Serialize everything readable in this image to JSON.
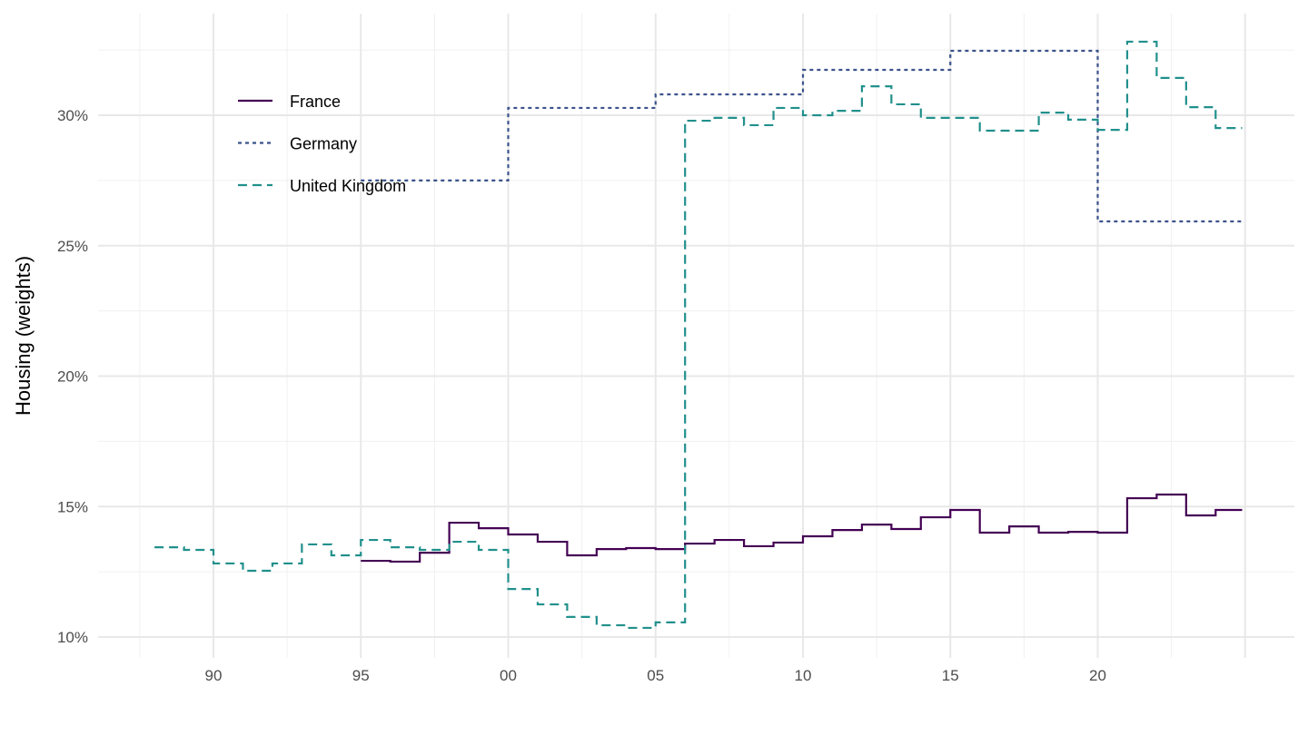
{
  "chart_data": {
    "type": "line",
    "title": "",
    "xlabel": "",
    "ylabel": "Housing (weights)",
    "xlim": [
      1987.5,
      2026.5
    ],
    "ylim": [
      9.5,
      33.2
    ],
    "grid": true,
    "legend_position": "top-left",
    "x_ticks": [
      1990,
      1995,
      2000,
      2005,
      2010,
      2015,
      2020
    ],
    "x_tick_labels": [
      "90",
      "95",
      "00",
      "05",
      "10",
      "15",
      "20"
    ],
    "y_ticks": [
      10,
      15,
      20,
      25,
      30
    ],
    "y_tick_labels": [
      "10%",
      "15%",
      "20%",
      "25%",
      "30%"
    ],
    "step": true,
    "series": [
      {
        "name": "France",
        "color": "#440154",
        "dash": "solid",
        "x": [
          1995,
          1996,
          1997,
          1998,
          1999,
          2000,
          2001,
          2002,
          2003,
          2004,
          2005,
          2006,
          2007,
          2008,
          2009,
          2010,
          2011,
          2012,
          2013,
          2014,
          2015,
          2016,
          2017,
          2018,
          2019,
          2020,
          2021,
          2022,
          2023,
          2024
        ],
        "values": [
          12.92,
          12.89,
          13.23,
          14.38,
          14.17,
          13.93,
          13.65,
          13.13,
          13.37,
          13.41,
          13.37,
          13.58,
          13.72,
          13.48,
          13.62,
          13.86,
          14.1,
          14.31,
          14.14,
          14.59,
          14.87,
          14.0,
          14.24,
          14.0,
          14.03,
          14.0,
          15.32,
          15.46,
          14.66,
          14.87
        ]
      },
      {
        "name": "Germany",
        "color": "#3B528B",
        "dash": "dotted",
        "x": [
          1995,
          2000,
          2005,
          2010,
          2015,
          2020
        ],
        "values": [
          27.5,
          30.28,
          30.8,
          31.74,
          32.47,
          25.93
        ]
      },
      {
        "name": "United Kingdom",
        "color": "#21908C",
        "dash": "dashed",
        "x": [
          1988,
          1989,
          1990,
          1991,
          1992,
          1993,
          1994,
          1995,
          1996,
          1997,
          1998,
          1999,
          2000,
          2001,
          2002,
          2003,
          2004,
          2005,
          2006,
          2007,
          2008,
          2009,
          2010,
          2011,
          2012,
          2013,
          2014,
          2015,
          2016,
          2017,
          2018,
          2019,
          2020,
          2021,
          2022,
          2023,
          2024
        ],
        "values": [
          13.44,
          13.34,
          12.82,
          12.54,
          12.82,
          13.55,
          13.13,
          13.72,
          13.44,
          13.34,
          13.65,
          13.34,
          11.84,
          11.25,
          10.77,
          10.45,
          10.35,
          10.56,
          29.79,
          29.9,
          29.62,
          30.28,
          30.0,
          30.17,
          31.11,
          30.42,
          29.9,
          29.9,
          29.41,
          29.41,
          30.1,
          29.83,
          29.44,
          32.82,
          31.43,
          30.31,
          29.51
        ]
      }
    ]
  }
}
